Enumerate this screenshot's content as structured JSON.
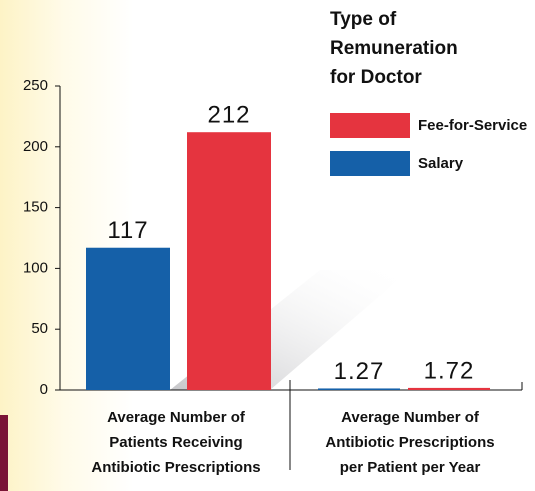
{
  "chart_data": {
    "type": "bar",
    "legend_title": [
      "Type of",
      "Remuneration",
      "for Doctor"
    ],
    "categories": [
      [
        "Average Number of",
        "Patients Receiving",
        "Antibiotic Prescriptions"
      ],
      [
        "Average Number of",
        "Antibiotic Prescriptions",
        "per Patient per Year"
      ]
    ],
    "series": [
      {
        "name": "Salary",
        "color": "#1560a8",
        "values": [
          117,
          1.27
        ]
      },
      {
        "name": "Fee-for-Service",
        "color": "#e5343f",
        "values": [
          212,
          1.72
        ]
      }
    ],
    "legend_order": [
      1,
      0
    ],
    "ylim": [
      0,
      250
    ],
    "yticks": [
      0,
      50,
      100,
      150,
      200,
      250
    ],
    "grid": false
  }
}
